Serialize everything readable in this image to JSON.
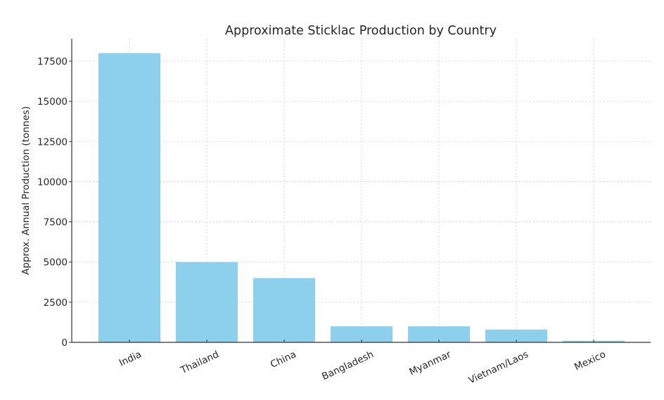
{
  "chart_data": {
    "type": "bar",
    "title": "Approximate Sticklac Production by Country",
    "xlabel": "",
    "ylabel": "Approx. Annual Production (tonnes)",
    "categories": [
      "India",
      "Thailand",
      "China",
      "Bangladesh",
      "Myanmar",
      "Vietnam/Laos",
      "Mexico"
    ],
    "values": [
      18000,
      5000,
      4000,
      1000,
      1000,
      800,
      100
    ],
    "ylim": [
      0,
      18900
    ],
    "yticks": [
      0,
      2500,
      5000,
      7500,
      10000,
      12500,
      15000,
      17500
    ],
    "grid": true,
    "legend": null,
    "bar_color": "#87ceeb",
    "xtick_rotation": 25
  }
}
